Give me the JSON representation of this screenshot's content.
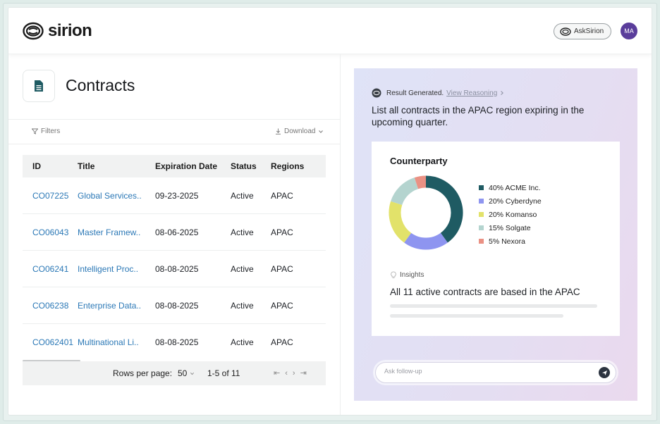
{
  "brand": {
    "name": "sirion"
  },
  "header": {
    "ask_label": "AskSirion",
    "avatar_initials": "MA"
  },
  "page": {
    "title": "Contracts"
  },
  "toolbar": {
    "filters_label": "Filters",
    "download_label": "Download"
  },
  "table": {
    "columns": [
      "ID",
      "Title",
      "Expiration Date",
      "Status",
      "Regions"
    ],
    "rows": [
      {
        "id": "CO07225",
        "title": "Global Services..",
        "expiration": "09-23-2025",
        "status": "Active",
        "region": "APAC"
      },
      {
        "id": "CO06043",
        "title": "Master Framew..",
        "expiration": "08-06-2025",
        "status": "Active",
        "region": "APAC"
      },
      {
        "id": "CO06241",
        "title": "Intelligent Proc..",
        "expiration": "08-08-2025",
        "status": "Active",
        "region": "APAC"
      },
      {
        "id": "CO06238",
        "title": "Enterprise Data..",
        "expiration": "08-08-2025",
        "status": "Active",
        "region": "APAC"
      },
      {
        "id": "CO062401",
        "title": "Multinational Li..",
        "expiration": "08-08-2025",
        "status": "Active",
        "region": "APAC"
      }
    ]
  },
  "pagination": {
    "rows_label": "Rows per page:",
    "rows_value": "50",
    "range": "1-5 of 11"
  },
  "assistant": {
    "status": "Result Generated.",
    "reasoning_link": "View Reasoning",
    "query": "List all contracts in the APAC region expiring in the upcoming quarter.",
    "card_title": "Counterparty",
    "insights_label": "Insights",
    "insight_text": "All 11 active contracts are based in the APAC",
    "followup_placeholder": "Ask follow-up"
  },
  "chart_data": {
    "type": "pie",
    "title": "Counterparty",
    "series": [
      {
        "name": "ACME Inc.",
        "label": "40% ACME Inc.",
        "value": 40,
        "color": "#1f5b63"
      },
      {
        "name": "Cyberdyne",
        "label": "20% Cyberdyne",
        "value": 20,
        "color": "#8e95f0"
      },
      {
        "name": "Komanso",
        "label": "20% Komanso",
        "value": 20,
        "color": "#e2e26a"
      },
      {
        "name": "Solgate",
        "label": "15% Solgate",
        "value": 15,
        "color": "#b4d4cf"
      },
      {
        "name": "Nexora",
        "label": "5% Nexora",
        "value": 5,
        "color": "#ea9184"
      }
    ]
  }
}
